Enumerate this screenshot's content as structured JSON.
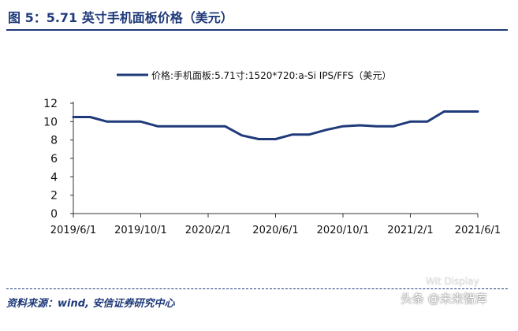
{
  "figure": {
    "title": "图 5：5.71 英寸手机面板价格（美元）",
    "source": "资料来源：wind, 安信证券研究中心",
    "watermark": "头条 @未来智库",
    "watermark_sub": "Wit Display"
  },
  "colors": {
    "line": "#1f3a7a",
    "axis": "#333333",
    "title": "#1f3a7a"
  },
  "chart_data": {
    "type": "line",
    "title": "",
    "xlabel": "",
    "ylabel": "",
    "legend_position": "top",
    "grid": false,
    "ylim": [
      0,
      12
    ],
    "yticks": [
      0,
      2,
      4,
      6,
      8,
      10,
      12
    ],
    "xtick_labels": [
      "2019/6/1",
      "2019/10/1",
      "2020/2/1",
      "2020/6/1",
      "2020/10/1",
      "2021/2/1",
      "2021/6/1"
    ],
    "x": [
      "2019/6",
      "2019/7",
      "2019/8",
      "2019/9",
      "2019/10",
      "2019/11",
      "2019/12",
      "2020/1",
      "2020/2",
      "2020/3",
      "2020/4",
      "2020/5",
      "2020/6",
      "2020/7",
      "2020/8",
      "2020/9",
      "2020/10",
      "2020/11",
      "2020/12",
      "2021/1",
      "2021/2",
      "2021/3",
      "2021/4",
      "2021/5",
      "2021/6"
    ],
    "series": [
      {
        "name": "价格:手机面板:5.71寸:1520*720:a-Si IPS/FFS（美元）",
        "values": [
          10.5,
          10.5,
          10.0,
          10.0,
          10.0,
          9.5,
          9.5,
          9.5,
          9.5,
          9.5,
          8.5,
          8.1,
          8.1,
          8.6,
          8.6,
          9.1,
          9.5,
          9.6,
          9.5,
          9.5,
          10.0,
          10.0,
          11.1,
          11.1,
          11.1
        ]
      }
    ]
  }
}
